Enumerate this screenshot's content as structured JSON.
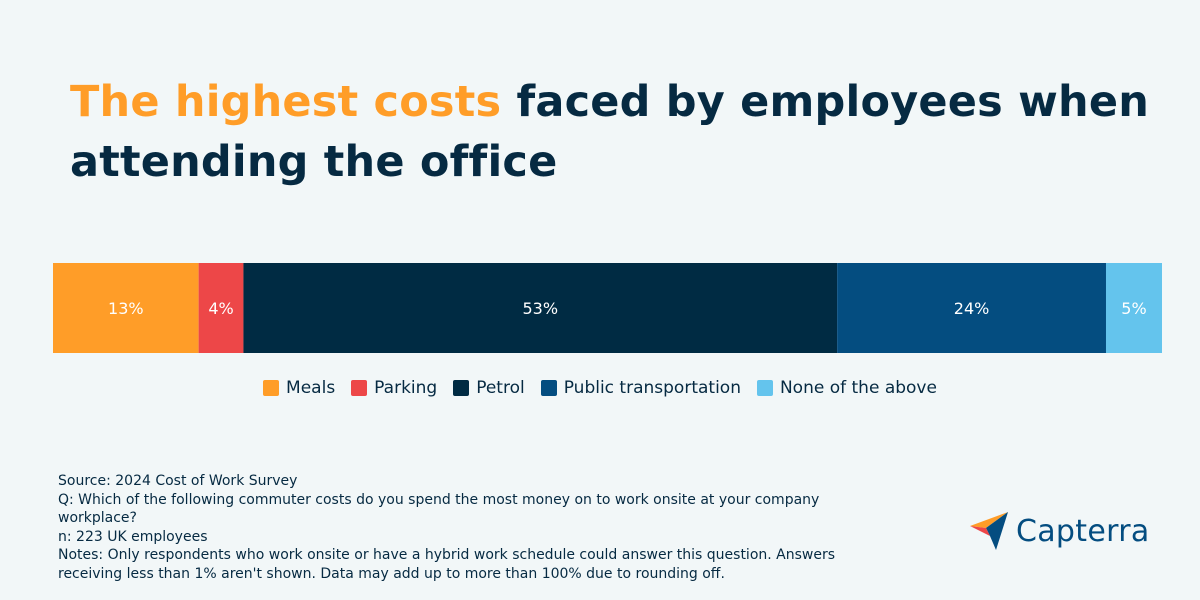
{
  "title": {
    "highlight": "The highest costs",
    "rest": "faced by employees when attending the office"
  },
  "chart_data": {
    "type": "bar",
    "orientation": "horizontal-stacked",
    "series": [
      {
        "name": "Meals",
        "value": 13,
        "label": "13%",
        "color": "#ff9d28"
      },
      {
        "name": "Parking",
        "value": 4,
        "label": "4%",
        "color": "#ed4748"
      },
      {
        "name": "Petrol",
        "value": 53,
        "label": "53%",
        "color": "#002b43"
      },
      {
        "name": "Public transportation",
        "value": 24,
        "label": "24%",
        "color": "#044d80"
      },
      {
        "name": "None of the above",
        "value": 5,
        "label": "5%",
        "color": "#64c4ed"
      }
    ],
    "legend_position": "bottom",
    "grid": false
  },
  "notes": {
    "source": "Source: 2024 Cost of Work Survey",
    "question": "Q: Which of the following commuter costs do you spend the most money on to work onsite at your company workplace?",
    "sample": "n: 223 UK employees",
    "notes": "Notes: Only respondents who work onsite or have a hybrid work schedule could answer this question. Answers receiving less than 1% aren't shown. Data may add up to more than 100% due to rounding off."
  },
  "logo": {
    "text": "Capterra",
    "icon": "capterra-arrow-icon"
  },
  "colors": {
    "background": "#f2f7f8",
    "navy": "#062a42",
    "orange": "#ff9d28"
  }
}
